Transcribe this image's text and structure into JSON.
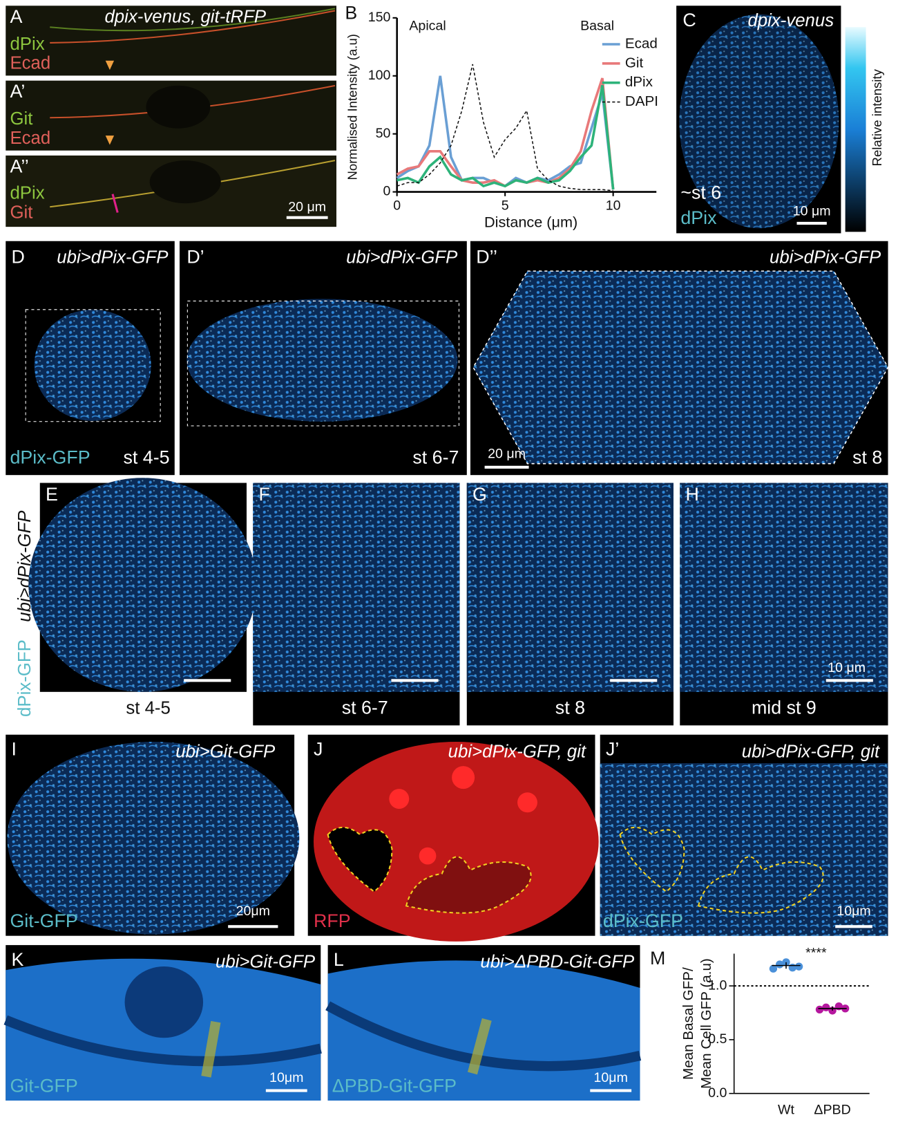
{
  "panels": {
    "A": {
      "label": "A",
      "title": "dpix-venus, git-tRFP",
      "green": "dPix",
      "red": "Ecad"
    },
    "A1": {
      "label": "A’",
      "green": "Git",
      "red": "Ecad"
    },
    "A2": {
      "label": "A’’",
      "green": "dPix",
      "red": "Git",
      "scale": "20 μm"
    },
    "C": {
      "label": "C",
      "title": "dpix-venus",
      "stage": "~st 6",
      "channel": "dPix",
      "scale": "10 μm",
      "colorbar": "Relative intensity"
    },
    "D": {
      "label": "D",
      "title": "ubi>dPix-GFP",
      "channel": "dPix-GFP",
      "stage": "st 4-5"
    },
    "D1": {
      "label": "D’",
      "title": "ubi>dPix-GFP",
      "stage": "st 6-7"
    },
    "D2": {
      "label": "D’’",
      "title": "ubi>dPix-GFP",
      "scale": "20 μm",
      "stage": "st 8"
    },
    "E_side": {
      "channel": "dPix-GFP",
      "genotype": "ubi>dPix-GFP"
    },
    "E": {
      "label": "E",
      "stage": "st 4-5"
    },
    "F": {
      "label": "F",
      "stage": "st 6-7"
    },
    "G": {
      "label": "G",
      "stage": "st 8"
    },
    "H": {
      "label": "H",
      "stage": "mid st 9",
      "scale": "10 μm"
    },
    "I": {
      "label": "I",
      "title": "ubi>Git-GFP",
      "channel": "Git-GFP",
      "scale": "20μm"
    },
    "J": {
      "label": "J",
      "title": "ubi>dPix-GFP, git",
      "channel": "RFP"
    },
    "J1": {
      "label": "J’",
      "title": "ubi>dPix-GFP, git",
      "channel": "dPix-GFP",
      "scale": "10μm"
    },
    "K": {
      "label": "K",
      "title": "ubi>Git-GFP",
      "channel": "Git-GFP",
      "scale": "10μm"
    },
    "L": {
      "label": "L",
      "title": "ubi>ΔPBD-Git-GFP",
      "channel": "ΔPBD-Git-GFP",
      "scale": "10μm"
    }
  },
  "chart_data": [
    {
      "type": "line",
      "label": "B",
      "x_label": "Distance (μm)",
      "y_label": "Normalised Intensity (a.u)",
      "annotations": [
        "Apical",
        "Basal"
      ],
      "legend": "upper right",
      "x": [
        0,
        0.5,
        1,
        1.5,
        2,
        2.5,
        3,
        3.5,
        4,
        4.5,
        5,
        5.5,
        6,
        6.5,
        7,
        7.5,
        8,
        8.5,
        9,
        9.5,
        10
      ],
      "series": [
        {
          "name": "Ecad",
          "color": "#6a9fd4",
          "style": "solid",
          "values": [
            12,
            18,
            22,
            40,
            100,
            30,
            10,
            12,
            12,
            8,
            5,
            12,
            8,
            12,
            10,
            15,
            22,
            25,
            55,
            85,
            2
          ]
        },
        {
          "name": "Git",
          "color": "#e8797a",
          "style": "solid",
          "values": [
            15,
            20,
            22,
            35,
            35,
            22,
            10,
            8,
            8,
            10,
            5,
            10,
            8,
            10,
            8,
            12,
            20,
            35,
            70,
            98,
            2
          ]
        },
        {
          "name": "dPix",
          "color": "#2db37a",
          "style": "solid",
          "values": [
            10,
            12,
            8,
            22,
            30,
            15,
            10,
            12,
            5,
            8,
            5,
            10,
            8,
            12,
            8,
            10,
            18,
            30,
            40,
            92,
            2
          ]
        },
        {
          "name": "DAPI",
          "color": "#111111",
          "style": "dashed",
          "values": [
            5,
            8,
            8,
            15,
            25,
            40,
            70,
            110,
            60,
            30,
            45,
            55,
            70,
            20,
            10,
            5,
            3,
            2,
            2,
            2,
            1
          ]
        }
      ],
      "xlim": [
        0,
        12
      ],
      "ylim": [
        0,
        150
      ],
      "xticks": [
        0,
        5,
        10
      ],
      "yticks": [
        0,
        50,
        100,
        150
      ]
    },
    {
      "type": "scatter",
      "label": "M",
      "y_label": [
        "Mean Basal GFP/",
        "Mean Cell GFP (a.u)"
      ],
      "annotation": "****",
      "categories": [
        "Wt",
        "ΔPBD"
      ],
      "colors": [
        "#4a90d9",
        "#b5179e"
      ],
      "values": [
        [
          1.16,
          1.2,
          1.22,
          1.17,
          1.18
        ],
        [
          0.78,
          0.8,
          0.77,
          0.81,
          0.79
        ]
      ],
      "means": [
        1.19,
        0.79
      ],
      "errors": [
        0.03,
        0.02
      ],
      "reference_line": 1,
      "ylim": [
        0,
        1.3
      ],
      "yticks": [
        {
          "value": 0,
          "label": "0.0"
        },
        {
          "value": 0.5,
          "label": "0.5"
        },
        {
          "value": 1,
          "label": "1.0"
        }
      ]
    }
  ]
}
